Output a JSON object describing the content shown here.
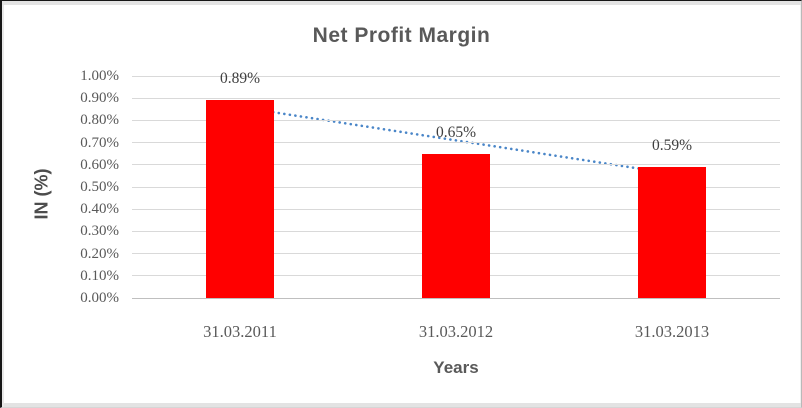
{
  "chart_data": {
    "type": "bar",
    "title": "Net Profit Margin",
    "xlabel": "Years",
    "ylabel": "IN (%)",
    "categories": [
      "31.03.2011",
      "31.03.2012",
      "31.03.2013"
    ],
    "values": [
      0.89,
      0.65,
      0.59
    ],
    "data_labels": [
      "0.89%",
      "0.65%",
      "0.59%"
    ],
    "unit": "%",
    "ylim": [
      0,
      1.0
    ],
    "ytick_step": 0.1,
    "yticks": [
      {
        "label": "1.00%",
        "value": 1.0
      },
      {
        "label": "0.90%",
        "value": 0.9
      },
      {
        "label": "0.80%",
        "value": 0.8
      },
      {
        "label": "0.70%",
        "value": 0.7
      },
      {
        "label": "0.60%",
        "value": 0.6
      },
      {
        "label": "0.50%",
        "value": 0.5
      },
      {
        "label": "0.40%",
        "value": 0.4
      },
      {
        "label": "0.30%",
        "value": 0.3
      },
      {
        "label": "0.20%",
        "value": 0.2
      },
      {
        "label": "0.10%",
        "value": 0.1
      },
      {
        "label": "0.00%",
        "value": 0.0
      }
    ],
    "grid": true,
    "legend": false,
    "trendline": {
      "type": "linear",
      "style": "dotted"
    },
    "colors": {
      "bar": "#ff0000",
      "trendline": "#4a86c8",
      "gridline": "#d9d9d9",
      "axis_line": "#bfbfbf",
      "title_text": "#595959",
      "axis_text": "#595959",
      "data_label_text": "#3f3f3f"
    }
  }
}
